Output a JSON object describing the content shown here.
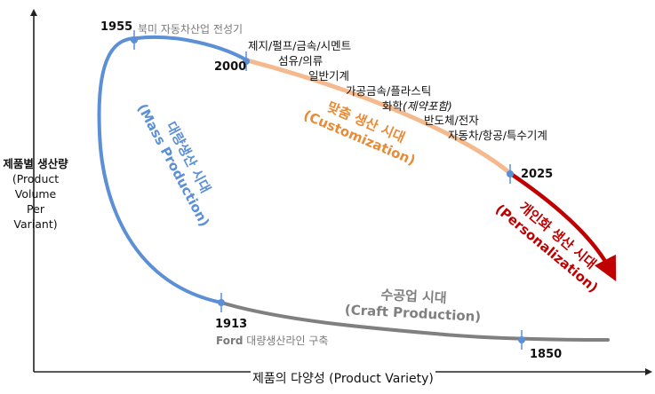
{
  "axes": {
    "y_label_ko": "제품별 생산량",
    "y_label_en_1": "(Product",
    "y_label_en_2": "Volume",
    "y_label_en_3": "Per",
    "y_label_en_4": "Variant)",
    "x_label": "제품의 다양성 (Product Variety)"
  },
  "milestones": {
    "y1955": "1955",
    "note_1955": "북미 자동차산업 전성기",
    "y2000": "2000",
    "y2025": "2025",
    "y1913": "1913",
    "note_1913_brand": "Ford",
    "note_1913": " 대량생산라인 구축",
    "y1850": "1850"
  },
  "industries": {
    "i1": "제지/펄프/금속/시멘트",
    "i2": "섬유/의류",
    "i3": "일반기계",
    "i4": "가공금속/플라스틱",
    "i5_main": "화학",
    "i5_paren": "(제약포함)",
    "i6": "반도체/전자",
    "i7": "자동차/항공/특수기계"
  },
  "eras": {
    "mass_ko": "대량생산 시대",
    "mass_en": "(Mass Production)",
    "custom_ko": "맞춤 생산 시대",
    "custom_en": "(Customization)",
    "personal_ko": "개인화 생산 시대",
    "personal_en": "(Personalization)",
    "craft_ko": "수공업 시대",
    "craft_en": "(Craft Production)"
  },
  "colors": {
    "mass": "#5b8fd6",
    "custom": "#f5b98e",
    "custom_text": "#e98a35",
    "personal": "#c00000",
    "craft": "#808080",
    "marker": "#5b8fd6"
  }
}
